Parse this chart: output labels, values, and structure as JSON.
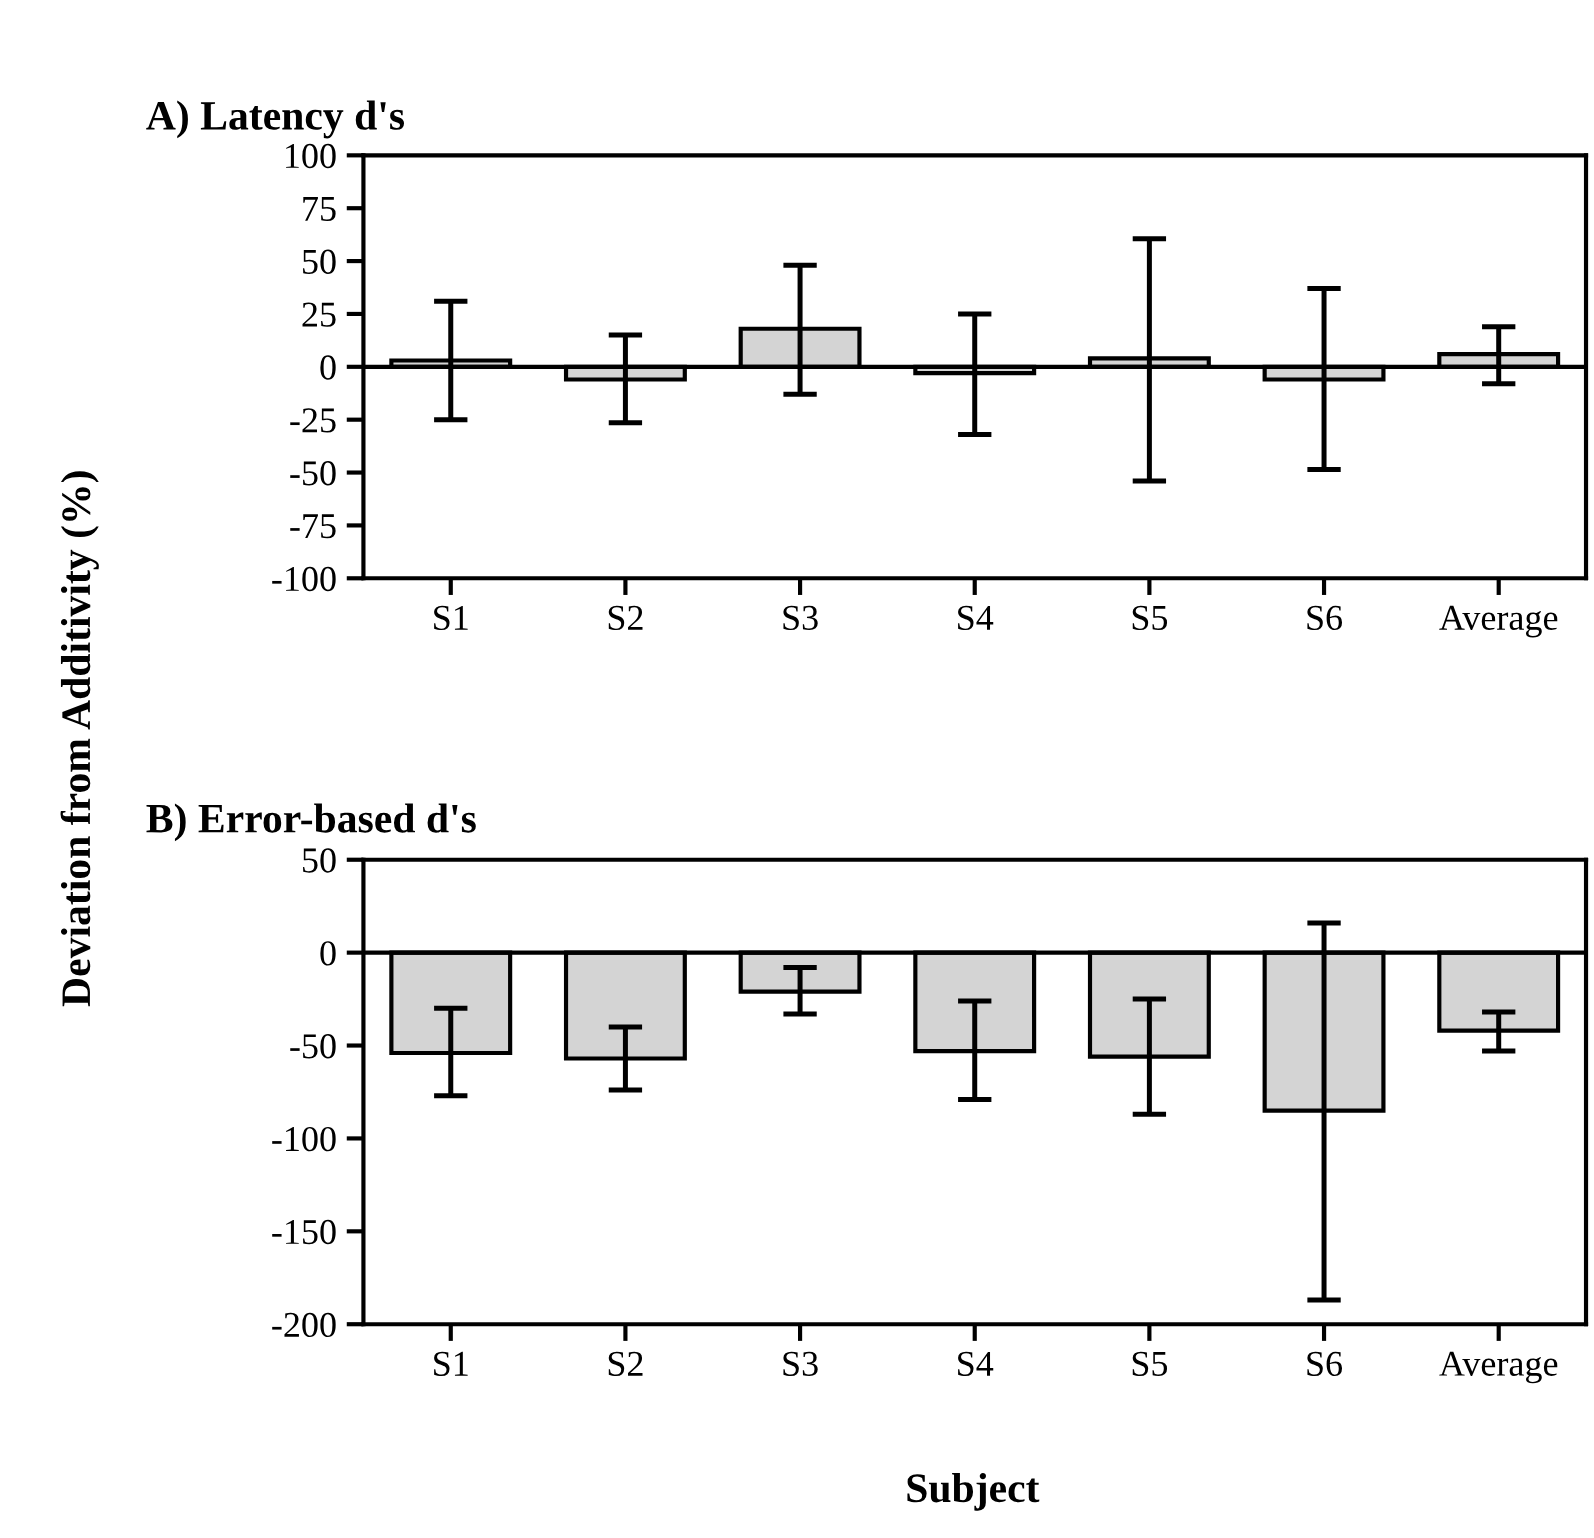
{
  "chart_data": [
    {
      "type": "bar",
      "title": "A) Latency d's",
      "ylabel": "Deviation from Additivity (%)",
      "categories": [
        "S1",
        "S2",
        "S3",
        "S4",
        "S5",
        "S6",
        "Average"
      ],
      "series": [
        {
          "color": "#d4d4d4",
          "values": [
            3,
            -6,
            18,
            -3,
            4,
            -6,
            6
          ],
          "errors": [
            [
              -25,
              31
            ],
            [
              -26.5,
              15
            ],
            [
              -13,
              48
            ],
            [
              -32,
              25
            ],
            [
              -54,
              60.5
            ],
            [
              -48.5,
              37
            ],
            [
              -8,
              19
            ]
          ]
        }
      ],
      "ylim": [
        -100,
        100
      ],
      "yticks": [
        -100,
        -75,
        -50,
        -25,
        0,
        25,
        50,
        75,
        100
      ],
      "ref_lines": [
        {
          "axis": "y",
          "value": 0
        }
      ],
      "grid": false
    },
    {
      "type": "bar",
      "title": "B) Error-based d's",
      "xlabel": "Subject",
      "categories": [
        "S1",
        "S2",
        "S3",
        "S4",
        "S5",
        "S6",
        "Average"
      ],
      "series": [
        {
          "color": "#d4d4d4",
          "values": [
            -54,
            -57,
            -21,
            -53,
            -56,
            -85,
            -42
          ],
          "errors": [
            [
              -77,
              -30
            ],
            [
              -74,
              -40
            ],
            [
              -33,
              -8
            ],
            [
              -79,
              -26
            ],
            [
              -87,
              -25
            ],
            [
              -187,
              16
            ],
            [
              -53,
              -32
            ]
          ]
        }
      ],
      "ylim": [
        -200,
        50
      ],
      "yticks": [
        -200,
        -150,
        -100,
        -50,
        0,
        50
      ],
      "ref_lines": [
        {
          "axis": "y",
          "value": 0
        }
      ],
      "grid": false
    }
  ]
}
